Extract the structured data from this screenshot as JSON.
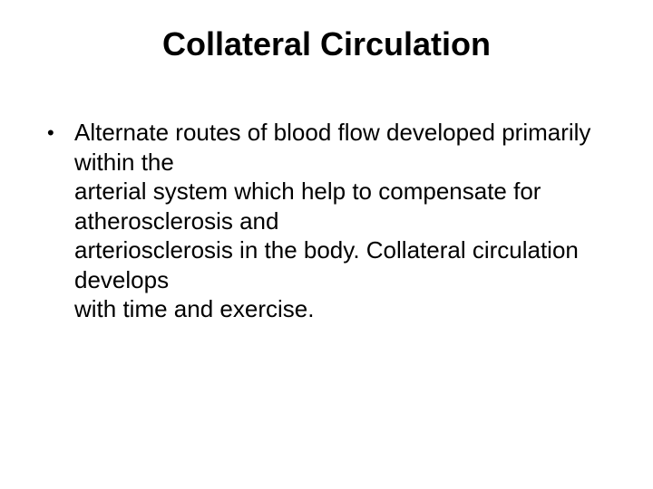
{
  "slide": {
    "title": "Collateral Circulation",
    "bullets": [
      {
        "marker": "•",
        "text": "Alternate routes of blood flow developed primarily within the\narterial system which help to compensate for atherosclerosis and\narteriosclerosis in the body.  Collateral circulation develops\nwith time and exercise."
      }
    ]
  },
  "styling": {
    "background_color": "#ffffff",
    "text_color": "#000000",
    "title_fontsize": 36,
    "title_fontweight": "bold",
    "body_fontsize": 26,
    "font_family": "Arial"
  }
}
